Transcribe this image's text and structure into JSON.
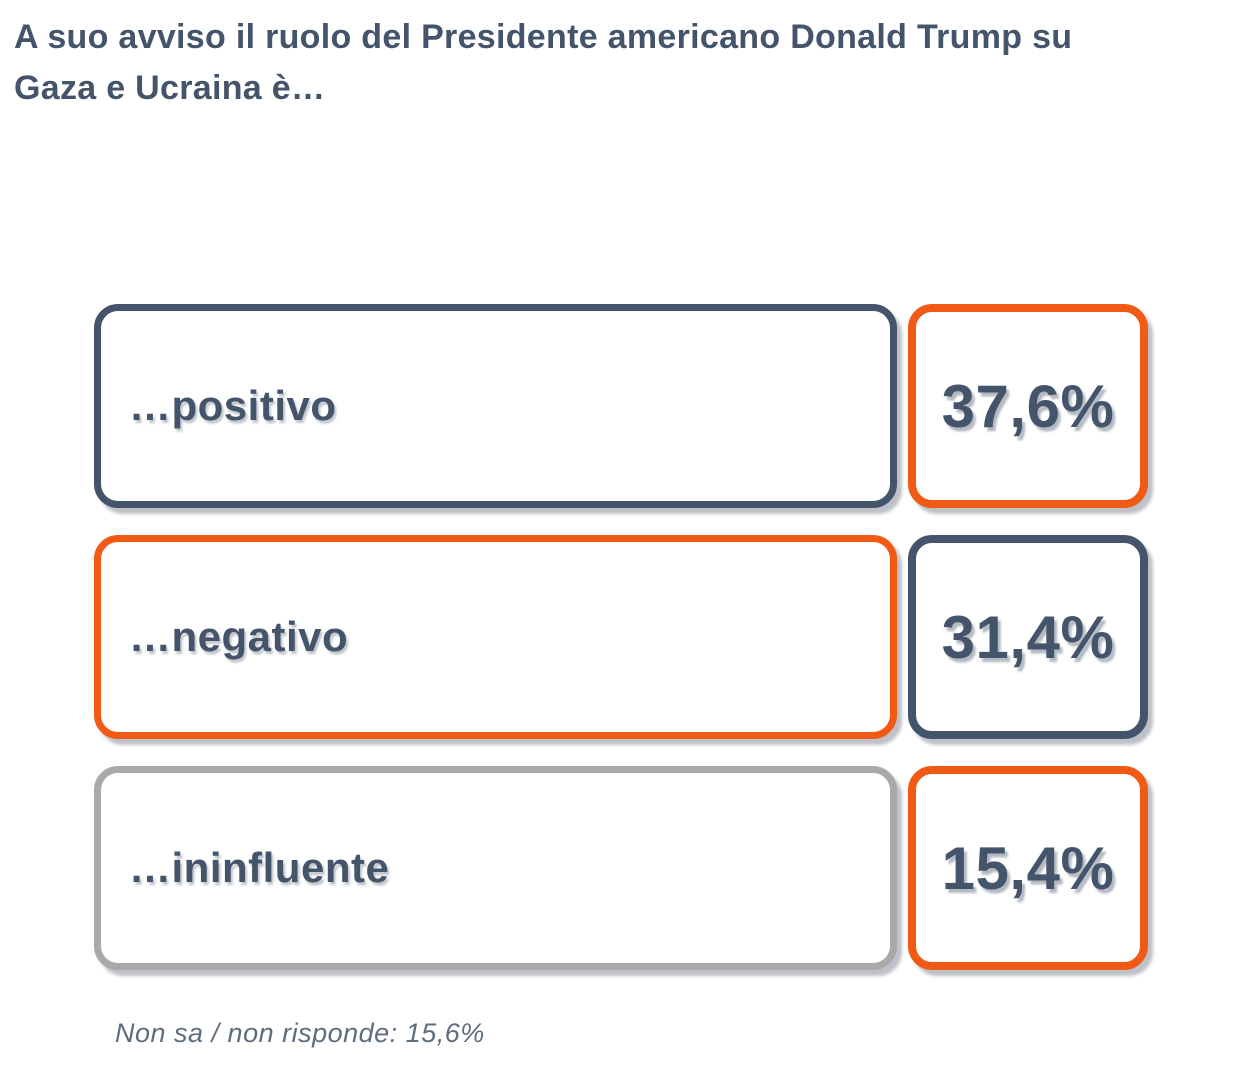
{
  "title": "A suo avviso il ruolo del Presidente americano Donald Trump su Gaza e Ucraina è…",
  "rows": [
    {
      "label": "…positivo",
      "value": "37,6%",
      "label_border_color": "#44546A",
      "value_border_color": "#F05A14"
    },
    {
      "label": "…negativo",
      "value": "31,4%",
      "label_border_color": "#F05A14",
      "value_border_color": "#44546A"
    },
    {
      "label": "…ininfluente",
      "value": "15,4%",
      "label_border_color": "#A9A9A9",
      "value_border_color": "#F05A14"
    }
  ],
  "footer_note": "Non sa / non risponde: 15,6%",
  "colors": {
    "dark_slate": "#44546A",
    "orange": "#F05A14",
    "gray": "#A9A9A9",
    "text": "#44546A",
    "note_text": "#5D6D7E",
    "background": "#FFFFFF"
  },
  "chart_data": {
    "type": "bar",
    "title": "A suo avviso il ruolo del Presidente americano Donald Trump su Gaza e Ucraina è…",
    "categories": [
      "…positivo",
      "…negativo",
      "…ininfluente"
    ],
    "values": [
      37.6,
      31.4,
      15.4
    ],
    "value_labels": [
      "37,6%",
      "31,4%",
      "15,4%"
    ],
    "unit": "%",
    "annotations": [
      "Non sa / non risponde: 15,6%"
    ],
    "legend_position": "none",
    "grid": false,
    "orientation": "horizontal-list"
  }
}
